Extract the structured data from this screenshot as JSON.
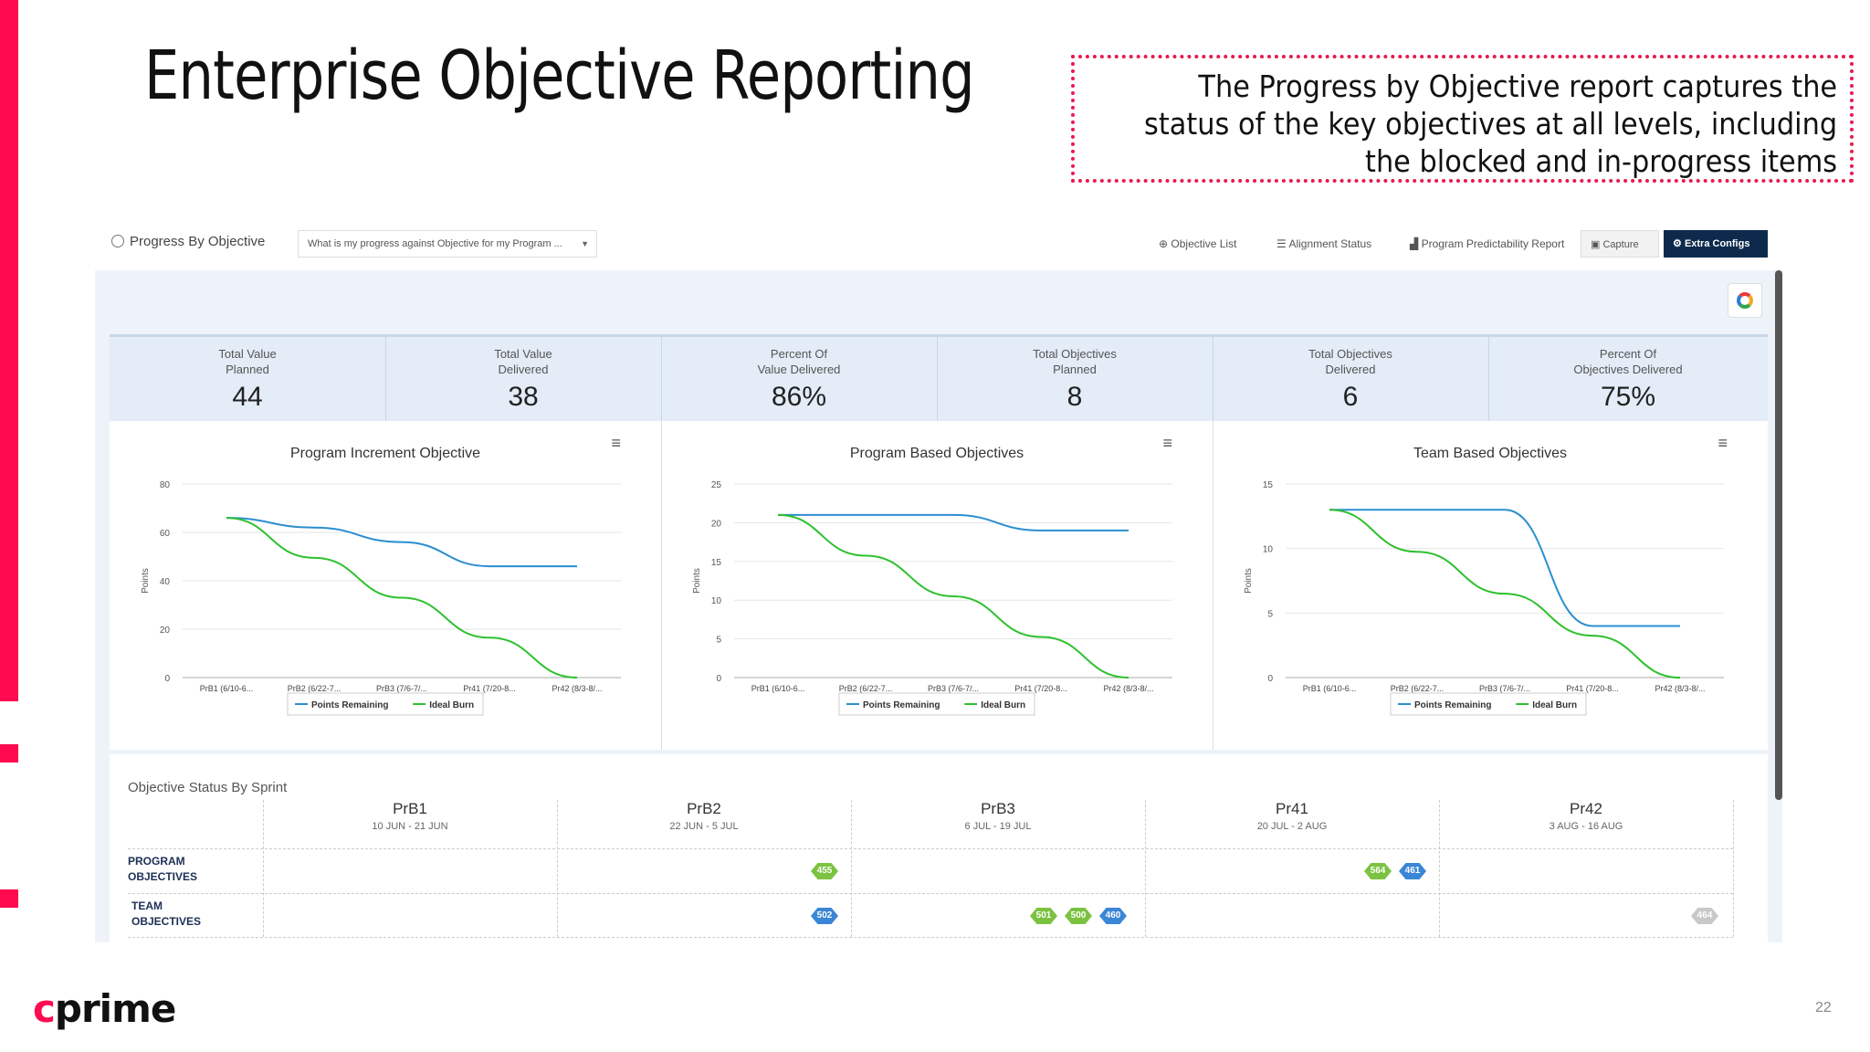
{
  "slide": {
    "title": "Enterprise Objective Reporting",
    "callout_lines": [
      "The Progress by Objective report captures the",
      "status of the key objectives at all levels, including",
      "the blocked and in-progress items"
    ],
    "logo_c": "c",
    "logo_rest": "prime",
    "page_number": "22",
    "accent_color": "#ff0a50"
  },
  "toolbar": {
    "title": "Progress By Objective",
    "question": "What is my progress against Objective for my Program ...",
    "links": [
      "Objective List",
      "Alignment Status",
      "Program Predictability Report"
    ],
    "capture": "Capture",
    "extra_configs": "Extra Configs"
  },
  "stats": [
    {
      "label1": "Total Value",
      "label2": "Planned",
      "value": "44"
    },
    {
      "label1": "Total Value",
      "label2": "Delivered",
      "value": "38"
    },
    {
      "label1": "Percent Of",
      "label2": "Value Delivered",
      "value": "86%"
    },
    {
      "label1": "Total Objectives",
      "label2": "Planned",
      "value": "8"
    },
    {
      "label1": "Total Objectives",
      "label2": "Delivered",
      "value": "6"
    },
    {
      "label1": "Percent Of",
      "label2": "Objectives Delivered",
      "value": "75%"
    }
  ],
  "chart_data": [
    {
      "type": "line",
      "title": "Program Increment Objective",
      "ylabel": "Points",
      "categories": [
        "PrB1 (6/10-6...",
        "PrB2 (6/22-7...",
        "PrB3 (7/6-7/...",
        "Pr41 (7/20-8...",
        "Pr42 (8/3-8/..."
      ],
      "yticks": [
        0,
        20,
        40,
        60,
        80
      ],
      "ylim": [
        0,
        80
      ],
      "series": [
        {
          "name": "Points Remaining",
          "color": "#2b8fd0",
          "values": [
            66,
            62,
            56,
            46,
            46
          ]
        },
        {
          "name": "Ideal Burn",
          "color": "#2ec12e",
          "values": [
            66,
            49.5,
            33,
            16.5,
            0
          ]
        }
      ]
    },
    {
      "type": "line",
      "title": "Program Based Objectives",
      "ylabel": "Points",
      "categories": [
        "PrB1 (6/10-6...",
        "PrB2 (6/22-7...",
        "PrB3 (7/6-7/...",
        "Pr41 (7/20-8...",
        "Pr42 (8/3-8/..."
      ],
      "yticks": [
        0,
        5,
        10,
        15,
        20,
        25
      ],
      "ylim": [
        0,
        25
      ],
      "series": [
        {
          "name": "Points Remaining",
          "color": "#2b8fd0",
          "values": [
            21,
            21,
            21,
            19,
            19
          ]
        },
        {
          "name": "Ideal Burn",
          "color": "#2ec12e",
          "values": [
            21,
            15.75,
            10.5,
            5.25,
            0
          ]
        }
      ]
    },
    {
      "type": "line",
      "title": "Team Based Objectives",
      "ylabel": "Points",
      "categories": [
        "PrB1 (6/10-6...",
        "PrB2 (6/22-7...",
        "PrB3 (7/6-7/...",
        "Pr41 (7/20-8...",
        "Pr42 (8/3-8/..."
      ],
      "yticks": [
        0,
        5,
        10,
        15
      ],
      "ylim": [
        0,
        15
      ],
      "series": [
        {
          "name": "Points Remaining",
          "color": "#2b8fd0",
          "values": [
            13,
            13,
            13,
            4,
            4
          ]
        },
        {
          "name": "Ideal Burn",
          "color": "#2ec12e",
          "values": [
            13,
            9.75,
            6.5,
            3.25,
            0
          ]
        }
      ]
    }
  ],
  "status": {
    "heading": "Objective Status By Sprint",
    "sprints": [
      {
        "name": "PrB1",
        "dates": "10 JUN - 21 JUN"
      },
      {
        "name": "PrB2",
        "dates": "22 JUN - 5 JUL"
      },
      {
        "name": "PrB3",
        "dates": "6 JUL - 19 JUL"
      },
      {
        "name": "Pr41",
        "dates": "20 JUL - 2 AUG"
      },
      {
        "name": "Pr42",
        "dates": "3 AUG - 16 AUG"
      }
    ],
    "rows": [
      {
        "label1": "PROGRAM",
        "label2": "OBJECTIVES"
      },
      {
        "label1": "TEAM",
        "label2": "OBJECTIVES"
      }
    ],
    "badges": [
      {
        "id": "455",
        "color": "green"
      },
      {
        "id": "564",
        "color": "green"
      },
      {
        "id": "461",
        "color": "blue"
      },
      {
        "id": "502",
        "color": "blue"
      },
      {
        "id": "501",
        "color": "green"
      },
      {
        "id": "500",
        "color": "green"
      },
      {
        "id": "460",
        "color": "blue"
      },
      {
        "id": "464",
        "color": "grey"
      }
    ]
  }
}
